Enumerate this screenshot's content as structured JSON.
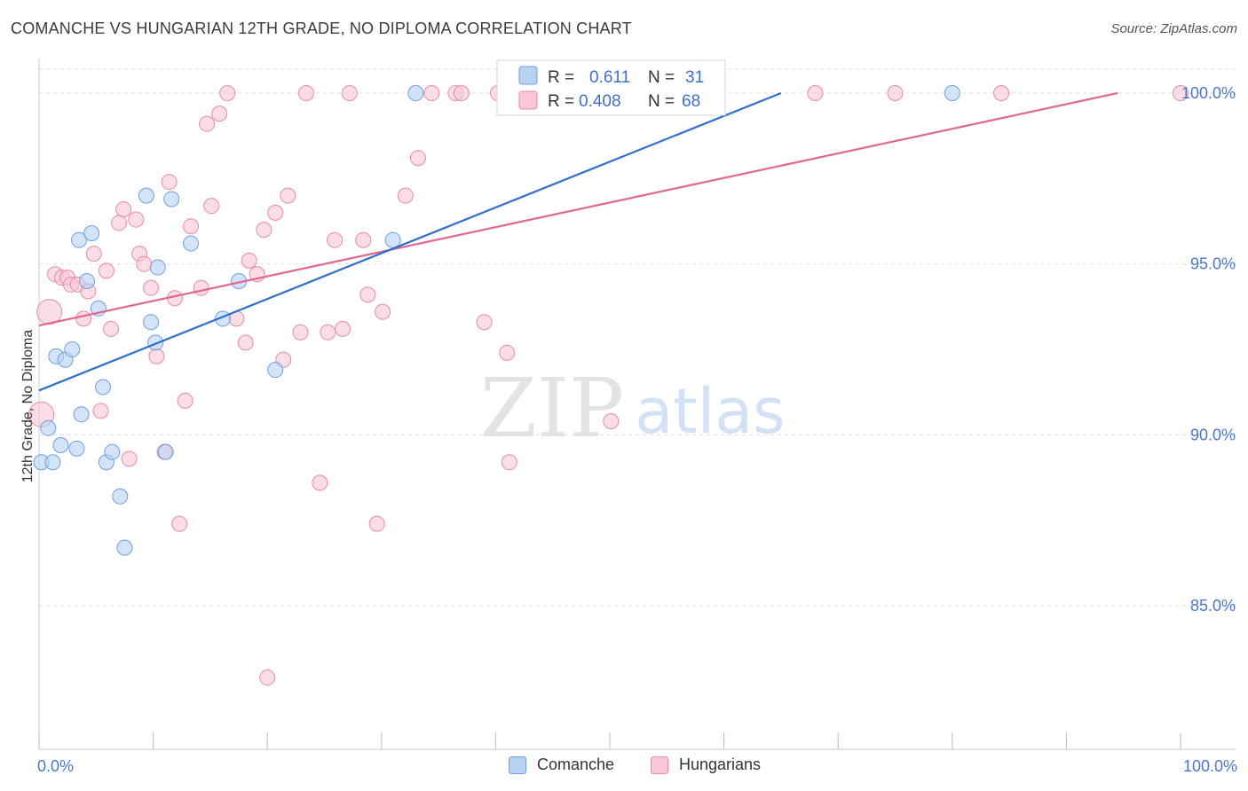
{
  "header": {
    "title": "COMANCHE VS HUNGARIAN 12TH GRADE, NO DIPLOMA CORRELATION CHART",
    "source": "Source: ZipAtlas.com"
  },
  "watermark": {
    "zip": "ZIP",
    "atlas": "atlas"
  },
  "legend": {
    "rows": [
      {
        "r_label": "R =",
        "r_value": "0.611",
        "n_label": "N =",
        "n_value": "31"
      },
      {
        "r_label": "R =",
        "r_value": "0.408",
        "n_label": "N =",
        "n_value": "68"
      }
    ]
  },
  "bottom_legend": {
    "comanche": "Comanche",
    "hungarians": "Hungarians"
  },
  "colors": {
    "comanche_fill": "#b8d2f3",
    "comanche_stroke": "#6f9ee0",
    "comanche_line": "#2e6fce",
    "hungarian_fill": "#f9c7d6",
    "hungarian_stroke": "#e88aa8",
    "hungarian_line": "#e0678f",
    "tick_text": "#4a78c8",
    "grid": "#dddddd"
  },
  "chart_data": {
    "type": "scatter",
    "title": "COMANCHE VS HUNGARIAN 12TH GRADE, NO DIPLOMA CORRELATION CHART",
    "xlabel": "",
    "ylabel": "12th Grade, No Diploma",
    "xlim": [
      0,
      100
    ],
    "ylim": [
      80.8,
      100.7
    ],
    "x_tick_labels": [
      "0.0%",
      "100.0%"
    ],
    "y_ticks": [
      85,
      90,
      95,
      100
    ],
    "y_tick_labels": [
      "85.0%",
      "90.0%",
      "95.0%",
      "100.0%"
    ],
    "grid": true,
    "legend_position": "top-center",
    "series": [
      {
        "name": "Comanche",
        "r": 0.611,
        "n": 31,
        "trend": {
          "x": [
            0,
            65
          ],
          "y": [
            91.3,
            100.0
          ]
        },
        "points": [
          {
            "x": 0.2,
            "y": 89.2
          },
          {
            "x": 0.8,
            "y": 90.2
          },
          {
            "x": 1.2,
            "y": 89.2
          },
          {
            "x": 1.5,
            "y": 92.3
          },
          {
            "x": 1.9,
            "y": 89.7
          },
          {
            "x": 2.3,
            "y": 92.2
          },
          {
            "x": 2.9,
            "y": 92.5
          },
          {
            "x": 3.3,
            "y": 89.6
          },
          {
            "x": 3.5,
            "y": 95.7
          },
          {
            "x": 3.7,
            "y": 90.6
          },
          {
            "x": 4.2,
            "y": 94.5
          },
          {
            "x": 4.6,
            "y": 95.9
          },
          {
            "x": 5.2,
            "y": 93.7
          },
          {
            "x": 5.6,
            "y": 91.4
          },
          {
            "x": 5.9,
            "y": 89.2
          },
          {
            "x": 6.4,
            "y": 89.5
          },
          {
            "x": 7.1,
            "y": 88.2
          },
          {
            "x": 7.5,
            "y": 86.7
          },
          {
            "x": 9.8,
            "y": 93.3
          },
          {
            "x": 10.2,
            "y": 92.7
          },
          {
            "x": 10.4,
            "y": 94.9
          },
          {
            "x": 11.1,
            "y": 89.5
          },
          {
            "x": 9.4,
            "y": 97.0
          },
          {
            "x": 11.6,
            "y": 96.9
          },
          {
            "x": 13.3,
            "y": 95.6
          },
          {
            "x": 16.1,
            "y": 93.4
          },
          {
            "x": 17.5,
            "y": 94.5
          },
          {
            "x": 20.7,
            "y": 91.9
          },
          {
            "x": 31.0,
            "y": 95.7
          },
          {
            "x": 33.0,
            "y": 100.0
          },
          {
            "x": 80.0,
            "y": 100.0
          }
        ]
      },
      {
        "name": "Hungarians",
        "r": 0.408,
        "n": 68,
        "trend": {
          "x": [
            0,
            94.5
          ],
          "y": [
            93.2,
            100.0
          ]
        },
        "points": [
          {
            "x": 0.2,
            "y": 90.6,
            "big": 1
          },
          {
            "x": 0.9,
            "y": 93.6,
            "big": 1
          },
          {
            "x": 1.4,
            "y": 94.7
          },
          {
            "x": 2.0,
            "y": 94.6
          },
          {
            "x": 2.5,
            "y": 94.6
          },
          {
            "x": 2.8,
            "y": 94.4
          },
          {
            "x": 3.4,
            "y": 94.4
          },
          {
            "x": 3.9,
            "y": 93.4
          },
          {
            "x": 4.3,
            "y": 94.2
          },
          {
            "x": 4.8,
            "y": 95.3
          },
          {
            "x": 5.4,
            "y": 90.7
          },
          {
            "x": 5.9,
            "y": 94.8
          },
          {
            "x": 6.3,
            "y": 93.1
          },
          {
            "x": 7.0,
            "y": 96.2
          },
          {
            "x": 7.4,
            "y": 96.6
          },
          {
            "x": 7.9,
            "y": 89.3
          },
          {
            "x": 8.5,
            "y": 96.3
          },
          {
            "x": 8.8,
            "y": 95.3
          },
          {
            "x": 9.2,
            "y": 95.0
          },
          {
            "x": 9.8,
            "y": 94.3
          },
          {
            "x": 10.3,
            "y": 92.3
          },
          {
            "x": 11.0,
            "y": 89.5
          },
          {
            "x": 11.4,
            "y": 97.4
          },
          {
            "x": 11.9,
            "y": 94.0
          },
          {
            "x": 12.3,
            "y": 87.4
          },
          {
            "x": 12.8,
            "y": 91.0
          },
          {
            "x": 13.3,
            "y": 96.1
          },
          {
            "x": 14.2,
            "y": 94.3
          },
          {
            "x": 14.7,
            "y": 99.1
          },
          {
            "x": 15.1,
            "y": 96.7
          },
          {
            "x": 15.8,
            "y": 99.4
          },
          {
            "x": 16.5,
            "y": 100.0
          },
          {
            "x": 17.3,
            "y": 93.4
          },
          {
            "x": 18.1,
            "y": 92.7
          },
          {
            "x": 18.4,
            "y": 95.1
          },
          {
            "x": 19.1,
            "y": 94.7
          },
          {
            "x": 19.7,
            "y": 96.0
          },
          {
            "x": 20.0,
            "y": 82.9
          },
          {
            "x": 20.7,
            "y": 96.5
          },
          {
            "x": 21.4,
            "y": 92.2
          },
          {
            "x": 21.8,
            "y": 97.0
          },
          {
            "x": 22.9,
            "y": 93.0
          },
          {
            "x": 23.4,
            "y": 100.0
          },
          {
            "x": 24.6,
            "y": 88.6
          },
          {
            "x": 25.3,
            "y": 93.0
          },
          {
            "x": 25.9,
            "y": 95.7
          },
          {
            "x": 26.6,
            "y": 93.1
          },
          {
            "x": 27.2,
            "y": 100.0
          },
          {
            "x": 28.4,
            "y": 95.7
          },
          {
            "x": 28.8,
            "y": 94.1
          },
          {
            "x": 29.6,
            "y": 87.4
          },
          {
            "x": 30.1,
            "y": 93.6
          },
          {
            "x": 32.1,
            "y": 97.0
          },
          {
            "x": 33.2,
            "y": 98.1
          },
          {
            "x": 34.4,
            "y": 100.0
          },
          {
            "x": 36.5,
            "y": 100.0
          },
          {
            "x": 37.0,
            "y": 100.0
          },
          {
            "x": 40.2,
            "y": 100.0
          },
          {
            "x": 41.4,
            "y": 100.0
          },
          {
            "x": 43.6,
            "y": 100.0
          },
          {
            "x": 39.0,
            "y": 93.3
          },
          {
            "x": 41.0,
            "y": 92.4
          },
          {
            "x": 41.2,
            "y": 89.2
          },
          {
            "x": 50.1,
            "y": 90.4
          },
          {
            "x": 68.0,
            "y": 100.0
          },
          {
            "x": 75.0,
            "y": 100.0
          },
          {
            "x": 84.3,
            "y": 100.0
          },
          {
            "x": 100.0,
            "y": 100.0
          }
        ]
      }
    ]
  }
}
